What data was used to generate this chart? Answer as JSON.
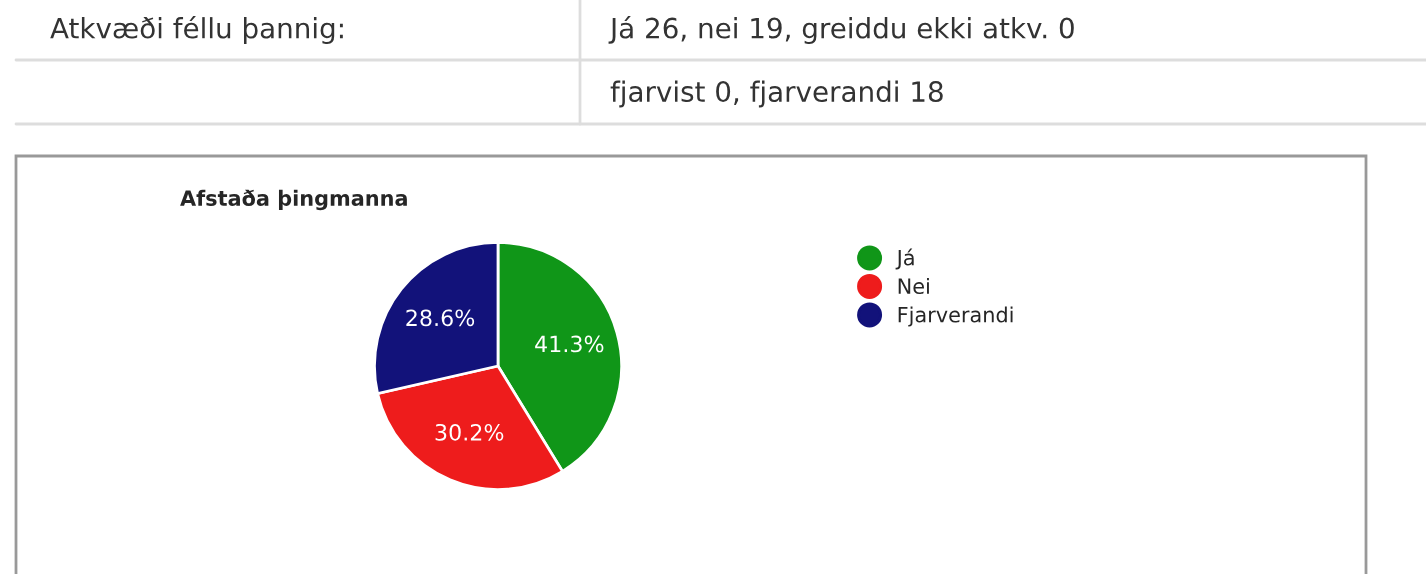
{
  "chart_data": {
    "type": "pie",
    "title": "Afstaða þingmanna",
    "categories": [
      "Já",
      "Nei",
      "Fjarverandi"
    ],
    "values": [
      41.3,
      30.2,
      28.6
    ],
    "colors": [
      "#109618",
      "#ee1c1c",
      "#12127a"
    ],
    "value_labels": [
      "41.3%",
      "30.2%",
      "28.6%"
    ],
    "legend": "top right",
    "annotations": [
      "Atkvæði féllu þannig:",
      "Já 26, nei 19, greiddu ekki atkv. 0",
      "fjarvist 0, fjarverandi 18"
    ]
  }
}
